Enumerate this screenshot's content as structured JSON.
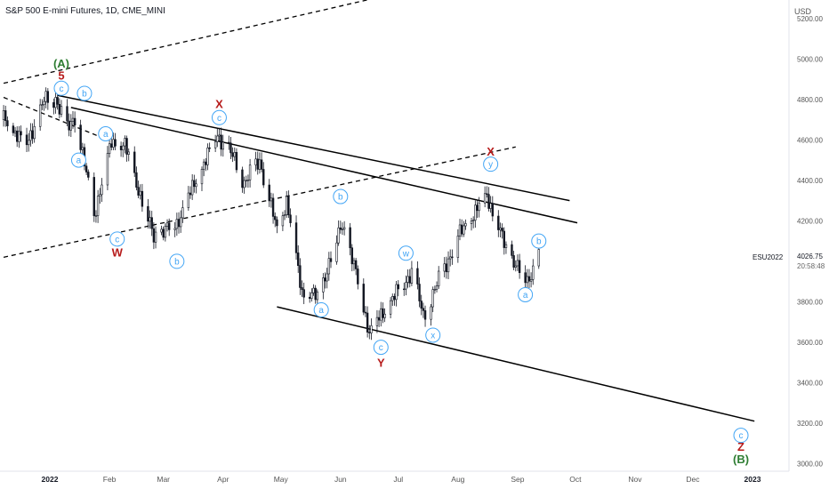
{
  "header": {
    "title": "S&P 500 E-mini Futures, 1D, CME_MINI",
    "currency": "USD"
  },
  "colors": {
    "red": "#b71c1c",
    "green": "#2e7d32",
    "blue": "#42a5f5",
    "candle": "#131722"
  },
  "chart_data": {
    "type": "candlestick",
    "symbol": "ESU2022",
    "last_price": "4026.75",
    "countdown": "20:58:48",
    "ylim": [
      3000,
      5250
    ],
    "y_ticks": [
      {
        "v": 5200,
        "t": "5200.00"
      },
      {
        "v": 5000,
        "t": "5000.00"
      },
      {
        "v": 4800,
        "t": "4800.00"
      },
      {
        "v": 4600,
        "t": "4600.00"
      },
      {
        "v": 4400,
        "t": "4400.00"
      },
      {
        "v": 4200,
        "t": "4200.00"
      },
      {
        "v": 3800,
        "t": "3800.00"
      },
      {
        "v": 3600,
        "t": "3600.00"
      },
      {
        "v": 3400,
        "t": "3400.00"
      },
      {
        "v": 3200,
        "t": "3200.00"
      },
      {
        "v": 3000,
        "t": "3000.00"
      }
    ],
    "x_ticks": [
      {
        "d": "2022-01-01",
        "t": "2022"
      },
      {
        "d": "2022-02-01",
        "t": "Feb"
      },
      {
        "d": "2022-03-01",
        "t": "Mar"
      },
      {
        "d": "2022-04-01",
        "t": "Apr"
      },
      {
        "d": "2022-05-01",
        "t": "May"
      },
      {
        "d": "2022-06-01",
        "t": "Jun"
      },
      {
        "d": "2022-07-01",
        "t": "Jul"
      },
      {
        "d": "2022-08-01",
        "t": "Aug"
      },
      {
        "d": "2022-09-01",
        "t": "Sep"
      },
      {
        "d": "2022-10-01",
        "t": "Oct"
      },
      {
        "d": "2022-11-01",
        "t": "Nov"
      },
      {
        "d": "2022-12-01",
        "t": "Dec"
      },
      {
        "d": "2023-01-01",
        "t": "2023"
      }
    ],
    "price_path": [
      [
        "2021-12-08",
        4700
      ],
      [
        "2021-12-20",
        4580
      ],
      [
        "2021-12-29",
        4790
      ],
      [
        "2022-01-04",
        4810
      ],
      [
        "2022-01-10",
        4650
      ],
      [
        "2022-01-14",
        4720
      ],
      [
        "2022-01-24",
        4230
      ],
      [
        "2022-02-02",
        4590
      ],
      [
        "2022-02-09",
        4570
      ],
      [
        "2022-02-24",
        4120
      ],
      [
        "2022-03-08",
        4190
      ],
      [
        "2022-03-29",
        4630
      ],
      [
        "2022-04-07",
        4500
      ],
      [
        "2022-04-12",
        4390
      ],
      [
        "2022-04-20",
        4500
      ],
      [
        "2022-04-29",
        4150
      ],
      [
        "2022-05-04",
        4300
      ],
      [
        "2022-05-12",
        3850
      ],
      [
        "2022-05-20",
        3820
      ],
      [
        "2022-06-02",
        4190
      ],
      [
        "2022-06-10",
        3900
      ],
      [
        "2022-06-16",
        3650
      ],
      [
        "2022-07-08",
        3950
      ],
      [
        "2022-07-14",
        3730
      ],
      [
        "2022-08-01",
        4120
      ],
      [
        "2022-08-16",
        4330
      ],
      [
        "2022-08-26",
        4060
      ],
      [
        "2022-09-06",
        3900
      ],
      [
        "2022-09-12",
        4030
      ]
    ],
    "trendlines": [
      {
        "style": "solid",
        "from": [
          "2022-01-05",
          4820
        ],
        "to": [
          "2022-09-28",
          4300
        ]
      },
      {
        "style": "solid",
        "from": [
          "2022-01-12",
          4760
        ],
        "to": [
          "2022-10-02",
          4190
        ]
      },
      {
        "style": "solid",
        "from": [
          "2022-04-29",
          3775
        ],
        "to": [
          "2023-01-02",
          3210
        ]
      },
      {
        "style": "dashed",
        "from": [
          "2021-12-08",
          4810
        ],
        "to": [
          "2022-01-31",
          4600
        ]
      },
      {
        "style": "dashed",
        "from": [
          "2021-12-08",
          4020
        ],
        "to": [
          "2022-08-31",
          4565
        ]
      },
      {
        "style": "dashed",
        "from": [
          "2021-12-08",
          4880
        ],
        "to": [
          "2022-06-28",
          5320
        ]
      }
    ],
    "annotations": [
      {
        "text": "(A)",
        "color": "green",
        "d": "2022-01-07",
        "y": 4980,
        "circle": false,
        "size": 13
      },
      {
        "text": "5",
        "color": "red",
        "d": "2022-01-07",
        "y": 4920,
        "circle": false,
        "size": 13
      },
      {
        "text": "c",
        "color": "blue",
        "d": "2022-01-07",
        "y": 4855,
        "circle": true
      },
      {
        "text": "b",
        "color": "blue",
        "d": "2022-01-19",
        "y": 4830,
        "circle": true
      },
      {
        "text": "a",
        "color": "blue",
        "d": "2022-01-30",
        "y": 4630,
        "circle": true
      },
      {
        "text": "a",
        "color": "blue",
        "d": "2022-01-16",
        "y": 4500,
        "circle": true
      },
      {
        "text": "c",
        "color": "blue",
        "d": "2022-02-05",
        "y": 4110,
        "circle": true
      },
      {
        "text": "W",
        "color": "red",
        "d": "2022-02-05",
        "y": 4045,
        "circle": false,
        "size": 13
      },
      {
        "text": "b",
        "color": "blue",
        "d": "2022-03-08",
        "y": 4000,
        "circle": true
      },
      {
        "text": "X",
        "color": "red",
        "d": "2022-03-30",
        "y": 4780,
        "circle": false,
        "size": 13
      },
      {
        "text": "c",
        "color": "blue",
        "d": "2022-03-30",
        "y": 4710,
        "circle": true
      },
      {
        "text": "b",
        "color": "blue",
        "d": "2022-06-01",
        "y": 4320,
        "circle": true
      },
      {
        "text": "a",
        "color": "blue",
        "d": "2022-05-22",
        "y": 3760,
        "circle": true
      },
      {
        "text": "w",
        "color": "blue",
        "d": "2022-07-05",
        "y": 4040,
        "circle": true
      },
      {
        "text": "c",
        "color": "blue",
        "d": "2022-06-22",
        "y": 3575,
        "circle": true
      },
      {
        "text": "Y",
        "color": "red",
        "d": "2022-06-22",
        "y": 3500,
        "circle": false,
        "size": 13
      },
      {
        "text": "x",
        "color": "blue",
        "d": "2022-07-19",
        "y": 3635,
        "circle": true
      },
      {
        "text": "X",
        "color": "red",
        "d": "2022-08-18",
        "y": 4545,
        "circle": false,
        "size": 13
      },
      {
        "text": "y",
        "color": "blue",
        "d": "2022-08-18",
        "y": 4480,
        "circle": true
      },
      {
        "text": "b",
        "color": "blue",
        "d": "2022-09-12",
        "y": 4100,
        "circle": true
      },
      {
        "text": "a",
        "color": "blue",
        "d": "2022-09-05",
        "y": 3835,
        "circle": true
      },
      {
        "text": "c",
        "color": "blue",
        "d": "2022-12-26",
        "y": 3140,
        "circle": true
      },
      {
        "text": "Z",
        "color": "red",
        "d": "2022-12-26",
        "y": 3085,
        "circle": false,
        "size": 13
      },
      {
        "text": "(B)",
        "color": "green",
        "d": "2022-12-26",
        "y": 3025,
        "circle": false,
        "size": 13
      }
    ]
  }
}
